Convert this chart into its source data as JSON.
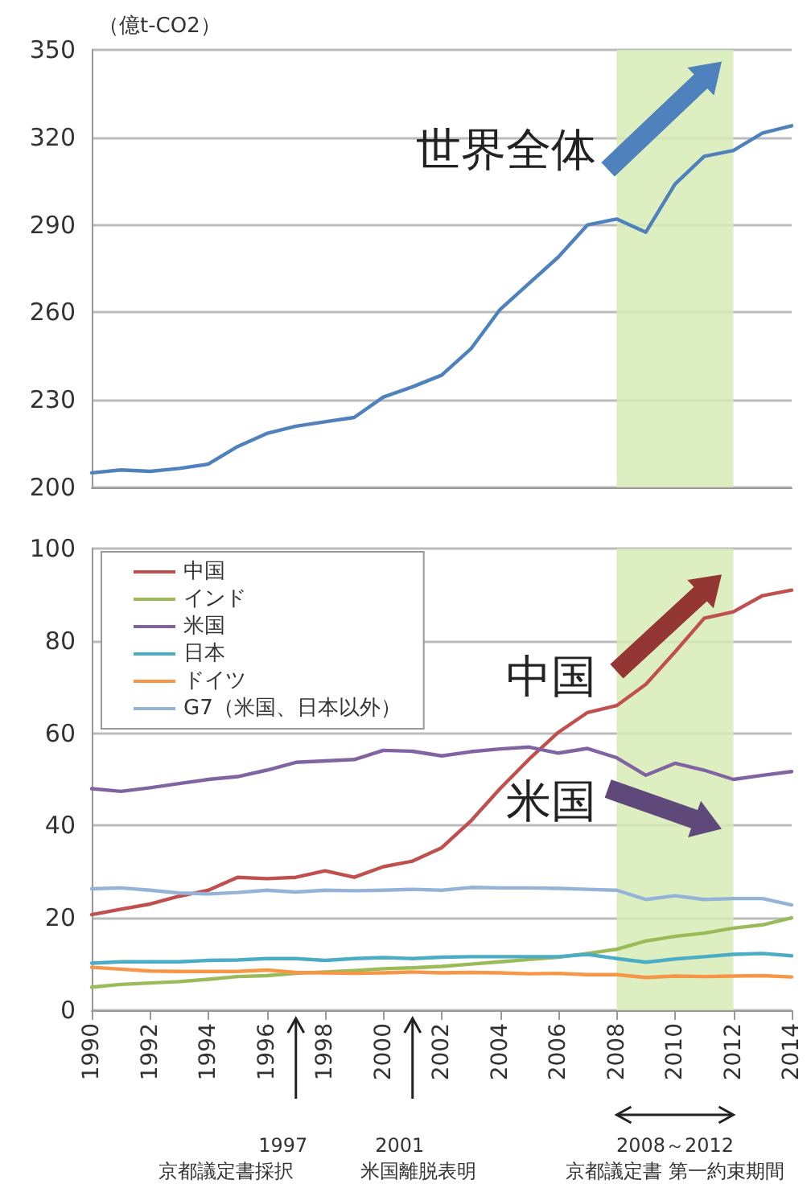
{
  "chart_data": [
    {
      "type": "line",
      "ylabel": "（億t-CO2）",
      "x": [
        1990,
        1991,
        1992,
        1993,
        1994,
        1995,
        1996,
        1997,
        1998,
        1999,
        2000,
        2001,
        2002,
        2003,
        2004,
        2005,
        2006,
        2007,
        2008,
        2009,
        2010,
        2011,
        2012,
        2013,
        2014
      ],
      "series": [
        {
          "color": "#4f81bd",
          "values": [
            205,
            206,
            205.5,
            206.5,
            208,
            214,
            218.5,
            221,
            222.5,
            224,
            231,
            234.5,
            238.5,
            247.5,
            261,
            270,
            279,
            290,
            292,
            287.5,
            304,
            313.5,
            315.5,
            321.5,
            324
          ]
        }
      ],
      "xlim": [
        1990,
        2014
      ],
      "ylim": [
        200,
        350
      ],
      "yticks": [
        200,
        230,
        260,
        290,
        320,
        350
      ],
      "tick_labels": "y",
      "grid": "y",
      "marker": "none",
      "legend": false,
      "bands": [
        {
          "axis": "x",
          "from": 2008,
          "to": 2012,
          "color": "#d7ebb5"
        }
      ],
      "annotations": [
        "世界全体"
      ]
    },
    {
      "type": "line",
      "x": [
        1990,
        1991,
        1992,
        1993,
        1994,
        1995,
        1996,
        1997,
        1998,
        1999,
        2000,
        2001,
        2002,
        2003,
        2004,
        2005,
        2006,
        2007,
        2008,
        2009,
        2010,
        2011,
        2012,
        2013,
        2014
      ],
      "series": [
        {
          "name": "中国",
          "color": "#c0504d",
          "values": [
            20.7,
            21.9,
            23,
            24.7,
            26,
            28.8,
            28.5,
            28.8,
            30.2,
            28.8,
            31.1,
            32.3,
            35.2,
            41,
            48,
            54.4,
            60.2,
            64.5,
            66,
            70.6,
            77.6,
            84.9,
            86.3,
            89.8,
            91
          ]
        },
        {
          "name": "インド",
          "color": "#9bbb59",
          "values": [
            5,
            5.6,
            5.9,
            6.2,
            6.7,
            7.3,
            7.5,
            8,
            8.3,
            8.6,
            9,
            9.2,
            9.5,
            10,
            10.5,
            11,
            11.5,
            12.3,
            13.2,
            15,
            16,
            16.7,
            17.8,
            18.5,
            20
          ]
        },
        {
          "name": "米国",
          "color": "#8064a2",
          "values": [
            48,
            47.4,
            48.2,
            49.1,
            50,
            50.6,
            52,
            53.7,
            54,
            54.3,
            56.3,
            56.1,
            55.1,
            56,
            56.6,
            57,
            55.7,
            56.7,
            54.7,
            50.9,
            53.5,
            52,
            50,
            50.9,
            51.7
          ]
        },
        {
          "name": "日本",
          "color": "#4bacc6",
          "values": [
            10.2,
            10.5,
            10.5,
            10.5,
            10.8,
            10.9,
            11.2,
            11.2,
            10.8,
            11.2,
            11.4,
            11.2,
            11.5,
            11.6,
            11.6,
            11.6,
            11.6,
            12.1,
            11.2,
            10.4,
            11.1,
            11.6,
            12.1,
            12.3,
            11.8
          ]
        },
        {
          "name": "ドイツ",
          "color": "#f79646",
          "values": [
            9.3,
            8.9,
            8.5,
            8.4,
            8.4,
            8.4,
            8.7,
            8.2,
            8.1,
            8,
            8.1,
            8.3,
            8.1,
            8.2,
            8.1,
            7.9,
            8,
            7.7,
            7.7,
            7.1,
            7.4,
            7.3,
            7.4,
            7.5,
            7.2
          ]
        },
        {
          "name": "G7（米国、日本以外）",
          "color": "#95b3d7",
          "values": [
            26.3,
            26.5,
            26,
            25.4,
            25.2,
            25.5,
            26,
            25.6,
            26,
            25.9,
            26,
            26.2,
            26,
            26.6,
            26.5,
            26.5,
            26.4,
            26.2,
            26,
            24,
            24.8,
            24,
            24.2,
            24.2,
            22.8
          ]
        }
      ],
      "xlim": [
        1990,
        2014
      ],
      "xticks": [
        1990,
        1992,
        1994,
        1996,
        1998,
        2000,
        2002,
        2004,
        2006,
        2008,
        2010,
        2012,
        2014
      ],
      "ylim": [
        0,
        100
      ],
      "yticks": [
        0,
        20,
        40,
        60,
        80,
        100
      ],
      "grid": "y",
      "marker": "none",
      "legend": "top left",
      "bands": [
        {
          "axis": "x",
          "from": 2008,
          "to": 2012,
          "color": "#d7ebb5"
        }
      ],
      "annotations": [
        "中国",
        "米国",
        "1997\n京都議定書採択",
        "2001\n米国離脱表明",
        "2008～2012\n京都議定書 第一約束期間"
      ]
    }
  ]
}
